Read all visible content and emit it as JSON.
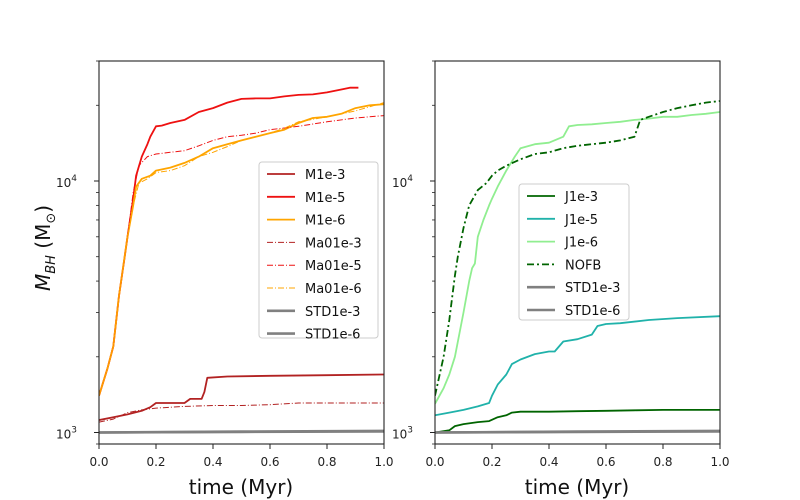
{
  "chart_data": [
    {
      "type": "line",
      "panel": "left",
      "xlabel": "time (Myr)",
      "ylabel_main": "M",
      "ylabel_sub": "BH",
      "ylabel_unit_open": " (M",
      "ylabel_unit_sub": "⊙",
      "ylabel_unit_close": ")",
      "yscale": "log",
      "xlim": [
        0,
        1.0
      ],
      "ylim": [
        900,
        30000
      ],
      "x_ticks": [
        "0.0",
        "0.2",
        "0.4",
        "0.6",
        "0.8",
        "1.0"
      ],
      "y_major_ticks": [
        {
          "label_base": "10",
          "label_exp": "3",
          "value": 1000
        },
        {
          "label_base": "10",
          "label_exp": "4",
          "value": 10000
        }
      ],
      "legend_position": "center-right",
      "series": [
        {
          "name": "M1e-3",
          "color": "#b22222",
          "dash": "solid",
          "width": 1.8,
          "x": [
            0,
            0.05,
            0.1,
            0.15,
            0.18,
            0.2,
            0.25,
            0.3,
            0.32,
            0.36,
            0.37,
            0.38,
            0.45,
            0.6,
            0.8,
            1.0
          ],
          "y": [
            1120,
            1150,
            1180,
            1220,
            1260,
            1310,
            1310,
            1310,
            1360,
            1360,
            1450,
            1650,
            1670,
            1680,
            1690,
            1700
          ]
        },
        {
          "name": "M1e-5",
          "color": "#ee1111",
          "dash": "solid",
          "width": 1.8,
          "x": [
            0,
            0.03,
            0.05,
            0.07,
            0.09,
            0.1,
            0.12,
            0.13,
            0.15,
            0.17,
            0.18,
            0.2,
            0.22,
            0.25,
            0.3,
            0.35,
            0.4,
            0.45,
            0.5,
            0.55,
            0.6,
            0.65,
            0.7,
            0.75,
            0.8,
            0.85,
            0.88,
            0.91
          ],
          "y": [
            1400,
            1800,
            2200,
            3500,
            5000,
            6000,
            8500,
            10500,
            12500,
            14000,
            15000,
            16500,
            16600,
            17000,
            17500,
            18800,
            19500,
            20500,
            21200,
            21300,
            21300,
            21700,
            22000,
            22100,
            22500,
            23100,
            23500,
            23500
          ]
        },
        {
          "name": "M1e-6",
          "color": "#ffa500",
          "dash": "solid",
          "width": 1.8,
          "x": [
            0,
            0.03,
            0.05,
            0.07,
            0.1,
            0.12,
            0.13,
            0.15,
            0.18,
            0.2,
            0.25,
            0.3,
            0.35,
            0.4,
            0.45,
            0.5,
            0.55,
            0.6,
            0.65,
            0.7,
            0.75,
            0.8,
            0.85,
            0.9,
            0.95,
            1.0
          ],
          "y": [
            1400,
            1800,
            2200,
            3500,
            6000,
            8000,
            9500,
            10200,
            10500,
            11000,
            11300,
            11800,
            12500,
            13500,
            14000,
            14500,
            15000,
            15500,
            16000,
            17000,
            17800,
            18000,
            18500,
            19500,
            20000,
            20200
          ]
        },
        {
          "name": "Ma01e-3",
          "color": "#b22222",
          "dash": "6,2,1,2",
          "width": 1.0,
          "x": [
            0,
            0.05,
            0.1,
            0.15,
            0.2,
            0.3,
            0.4,
            0.5,
            0.6,
            0.7,
            0.8,
            0.9,
            1.0
          ],
          "y": [
            1100,
            1130,
            1200,
            1230,
            1250,
            1270,
            1280,
            1280,
            1290,
            1310,
            1310,
            1310,
            1310
          ]
        },
        {
          "name": "Ma01e-5",
          "color": "#ee1111",
          "dash": "6,2,1,2",
          "width": 1.0,
          "x": [
            0,
            0.03,
            0.05,
            0.07,
            0.1,
            0.12,
            0.14,
            0.17,
            0.2,
            0.25,
            0.3,
            0.35,
            0.4,
            0.45,
            0.5,
            0.55,
            0.6,
            0.7,
            0.8,
            0.9,
            1.0
          ],
          "y": [
            1400,
            1800,
            2200,
            3500,
            6000,
            9000,
            11500,
            12500,
            12800,
            13000,
            13200,
            13800,
            14500,
            15000,
            15200,
            15500,
            16000,
            16500,
            17200,
            17800,
            18200
          ]
        },
        {
          "name": "Ma01e-6",
          "color": "#ffa500",
          "dash": "6,2,1,2",
          "width": 1.0,
          "x": [
            0,
            0.03,
            0.05,
            0.07,
            0.1,
            0.12,
            0.14,
            0.17,
            0.2,
            0.25,
            0.3,
            0.35,
            0.4,
            0.45,
            0.5,
            0.55,
            0.6,
            0.65,
            0.7,
            0.8,
            0.9,
            1.0
          ],
          "y": [
            1400,
            1800,
            2200,
            3500,
            6000,
            8000,
            9800,
            10200,
            10800,
            11000,
            11500,
            12500,
            13000,
            13700,
            14500,
            15000,
            15500,
            16200,
            17200,
            18000,
            19000,
            20500
          ]
        },
        {
          "name": "STD1e-3",
          "color": "#808080",
          "dash": "solid",
          "width": 2.6,
          "x": [
            0,
            0.5,
            1.0
          ],
          "y": [
            1000,
            1005,
            1010
          ]
        },
        {
          "name": "STD1e-6",
          "color": "#808080",
          "dash": "solid",
          "width": 2.6,
          "x": [
            0,
            0.5,
            1.0
          ],
          "y": [
            1000,
            1008,
            1015
          ]
        }
      ]
    },
    {
      "type": "line",
      "panel": "right",
      "xlabel": "time (Myr)",
      "yscale": "log",
      "xlim": [
        0,
        1.0
      ],
      "ylim": [
        900,
        30000
      ],
      "x_ticks": [
        "0.0",
        "0.2",
        "0.4",
        "0.6",
        "0.8",
        "1.0"
      ],
      "y_major_ticks": [
        {
          "label_base": "10",
          "label_exp": "3",
          "value": 1000
        },
        {
          "label_base": "10",
          "label_exp": "4",
          "value": 10000
        }
      ],
      "legend_position": "center",
      "series": [
        {
          "name": "J1e-3",
          "color": "#006400",
          "dash": "solid",
          "width": 1.8,
          "x": [
            0,
            0.05,
            0.07,
            0.1,
            0.15,
            0.19,
            0.22,
            0.25,
            0.27,
            0.3,
            0.4,
            0.5,
            0.6,
            0.7,
            0.8,
            0.9,
            1.0
          ],
          "y": [
            1000,
            1020,
            1060,
            1080,
            1100,
            1110,
            1150,
            1170,
            1200,
            1210,
            1210,
            1215,
            1220,
            1225,
            1230,
            1230,
            1230
          ]
        },
        {
          "name": "J1e-5",
          "color": "#20b2aa",
          "dash": "solid",
          "width": 1.8,
          "x": [
            0,
            0.05,
            0.1,
            0.15,
            0.19,
            0.2,
            0.22,
            0.25,
            0.27,
            0.3,
            0.35,
            0.4,
            0.42,
            0.45,
            0.5,
            0.55,
            0.57,
            0.6,
            0.65,
            0.75,
            0.85,
            1.0
          ],
          "y": [
            1170,
            1200,
            1230,
            1270,
            1310,
            1400,
            1550,
            1700,
            1870,
            1950,
            2050,
            2100,
            2100,
            2300,
            2350,
            2450,
            2650,
            2700,
            2720,
            2800,
            2850,
            2900
          ]
        },
        {
          "name": "J1e-6",
          "color": "#90ee90",
          "dash": "solid",
          "width": 1.8,
          "x": [
            0,
            0.03,
            0.05,
            0.07,
            0.1,
            0.12,
            0.13,
            0.14,
            0.15,
            0.17,
            0.19,
            0.2,
            0.22,
            0.25,
            0.28,
            0.3,
            0.35,
            0.4,
            0.45,
            0.47,
            0.5,
            0.55,
            0.6,
            0.65,
            0.7,
            0.75,
            0.8,
            0.85,
            0.9,
            0.95,
            1.0
          ],
          "y": [
            1300,
            1500,
            1700,
            2000,
            3000,
            4000,
            4500,
            4700,
            6000,
            7000,
            8000,
            8500,
            9500,
            11000,
            12500,
            13500,
            14000,
            14200,
            15000,
            16500,
            16700,
            16800,
            17000,
            17200,
            17500,
            17700,
            18000,
            18000,
            18300,
            18500,
            18800
          ]
        },
        {
          "name": "NOFB",
          "color": "#006400",
          "dash": "7,3,2,3",
          "width": 1.8,
          "x": [
            0,
            0.03,
            0.05,
            0.07,
            0.08,
            0.1,
            0.12,
            0.15,
            0.18,
            0.2,
            0.22,
            0.25,
            0.3,
            0.35,
            0.4,
            0.45,
            0.5,
            0.55,
            0.6,
            0.65,
            0.7,
            0.72,
            0.75,
            0.8,
            0.85,
            0.9,
            0.95,
            1.0
          ],
          "y": [
            1400,
            2000,
            2800,
            4200,
            5000,
            6500,
            8000,
            9200,
            9800,
            10500,
            11000,
            11500,
            12200,
            12800,
            13000,
            13500,
            13800,
            14000,
            14200,
            14500,
            15000,
            17500,
            18000,
            18800,
            19500,
            20000,
            20500,
            20800
          ]
        },
        {
          "name": "STD1e-3",
          "color": "#808080",
          "dash": "solid",
          "width": 2.6,
          "x": [
            0,
            0.5,
            1.0
          ],
          "y": [
            1000,
            1005,
            1010
          ]
        },
        {
          "name": "STD1e-6",
          "color": "#808080",
          "dash": "solid",
          "width": 2.6,
          "x": [
            0,
            0.5,
            1.0
          ],
          "y": [
            1000,
            1008,
            1015
          ]
        }
      ]
    }
  ]
}
